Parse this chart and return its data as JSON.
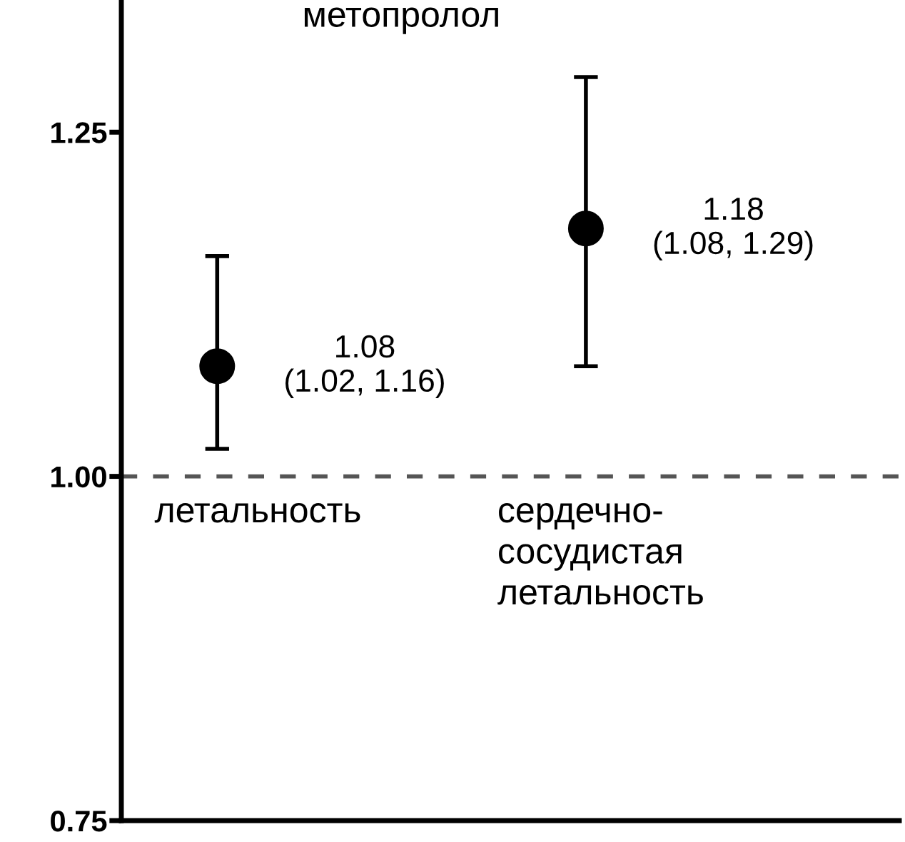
{
  "chart_data": {
    "type": "scatter",
    "title": "метопролол",
    "categories": [
      "летальность",
      "сердечно-\nсосудистая\nлетальность"
    ],
    "values": [
      1.08,
      1.18
    ],
    "errors": [
      [
        1.02,
        1.16
      ],
      [
        1.08,
        1.29
      ]
    ],
    "value_labels": [
      "1.08\n(1.02, 1.16)",
      "1.18\n(1.08, 1.29)"
    ],
    "color": "#000000",
    "marker": "circle",
    "ylim": [
      0.75,
      1.346
    ],
    "yticks": [
      {
        "value": 0.75,
        "label": "0.75"
      },
      {
        "value": 1.0,
        "label": "1.00"
      },
      {
        "value": 1.25,
        "label": "1.25"
      }
    ],
    "ref_lines": [
      {
        "axis": "y",
        "value": 1.0,
        "color": "#555555",
        "line_style": "dashed"
      }
    ],
    "grid": false
  }
}
